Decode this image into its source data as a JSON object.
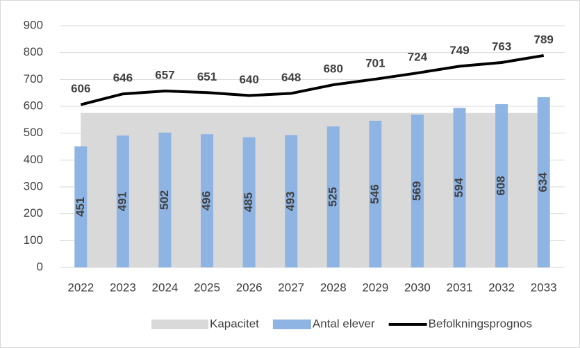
{
  "chart_data": {
    "type": "combo",
    "categories": [
      "2022",
      "2023",
      "2024",
      "2025",
      "2026",
      "2027",
      "2028",
      "2029",
      "2030",
      "2031",
      "2032",
      "2033"
    ],
    "series": [
      {
        "name": "Kapacitet",
        "type": "area",
        "color": "#d9d9d9",
        "values": [
          575,
          575,
          575,
          575,
          575,
          575,
          575,
          575,
          575,
          575,
          575,
          575
        ]
      },
      {
        "name": "Antal elever",
        "type": "bar",
        "color": "#8eb4e3",
        "values": [
          451,
          491,
          502,
          496,
          485,
          493,
          525,
          546,
          569,
          594,
          608,
          634
        ]
      },
      {
        "name": "Befolkningsprognos",
        "type": "line",
        "color": "#000000",
        "values": [
          606,
          646,
          657,
          651,
          640,
          648,
          680,
          701,
          724,
          749,
          763,
          789
        ]
      }
    ],
    "ylim": [
      0,
      900
    ],
    "yticks": [
      0,
      100,
      200,
      300,
      400,
      500,
      600,
      700,
      800,
      900
    ],
    "grid": true,
    "legend": "bottom"
  }
}
